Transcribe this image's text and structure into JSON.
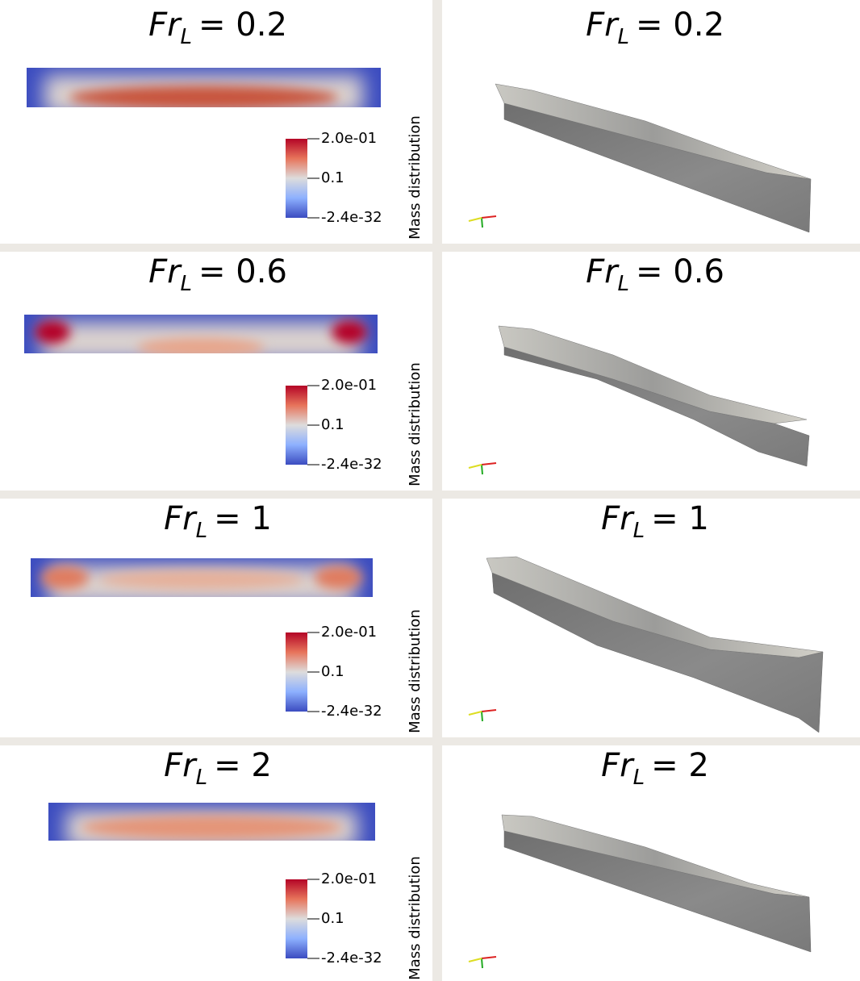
{
  "rows": [
    {
      "left_title": {
        "symbol": "Fr",
        "subscript": "L",
        "value": "= 0.2"
      },
      "colorbar": {
        "label": "Mass distribution",
        "ticks": [
          "2.0e-01",
          "0.1",
          "-2.4e-32"
        ]
      },
      "right_title": {
        "symbol": "Fr",
        "subscript": "L",
        "value": "= 0.2"
      }
    },
    {
      "left_title": {
        "symbol": "Fr",
        "subscript": "L",
        "value": "= 0.6"
      },
      "colorbar": {
        "label": "Mass distribution",
        "ticks": [
          "2.0e-01",
          "0.1",
          "-2.4e-32"
        ]
      },
      "right_title": {
        "symbol": "Fr",
        "subscript": "L",
        "value": "= 0.6"
      }
    },
    {
      "left_title": {
        "symbol": "Fr",
        "subscript": "L",
        "value": "= 1"
      },
      "colorbar": {
        "label": "Mass distribution",
        "ticks": [
          "2.0e-01",
          "0.1",
          "-2.4e-32"
        ]
      },
      "right_title": {
        "symbol": "Fr",
        "subscript": "L",
        "value": "= 1"
      }
    },
    {
      "left_title": {
        "symbol": "Fr",
        "subscript": "L",
        "value": "= 2"
      },
      "colorbar": {
        "label": "Mass distribution",
        "ticks": [
          "2.0e-01",
          "0.1",
          "-2.4e-32"
        ]
      },
      "right_title": {
        "symbol": "Fr",
        "subscript": "L",
        "value": "= 2"
      }
    }
  ]
}
